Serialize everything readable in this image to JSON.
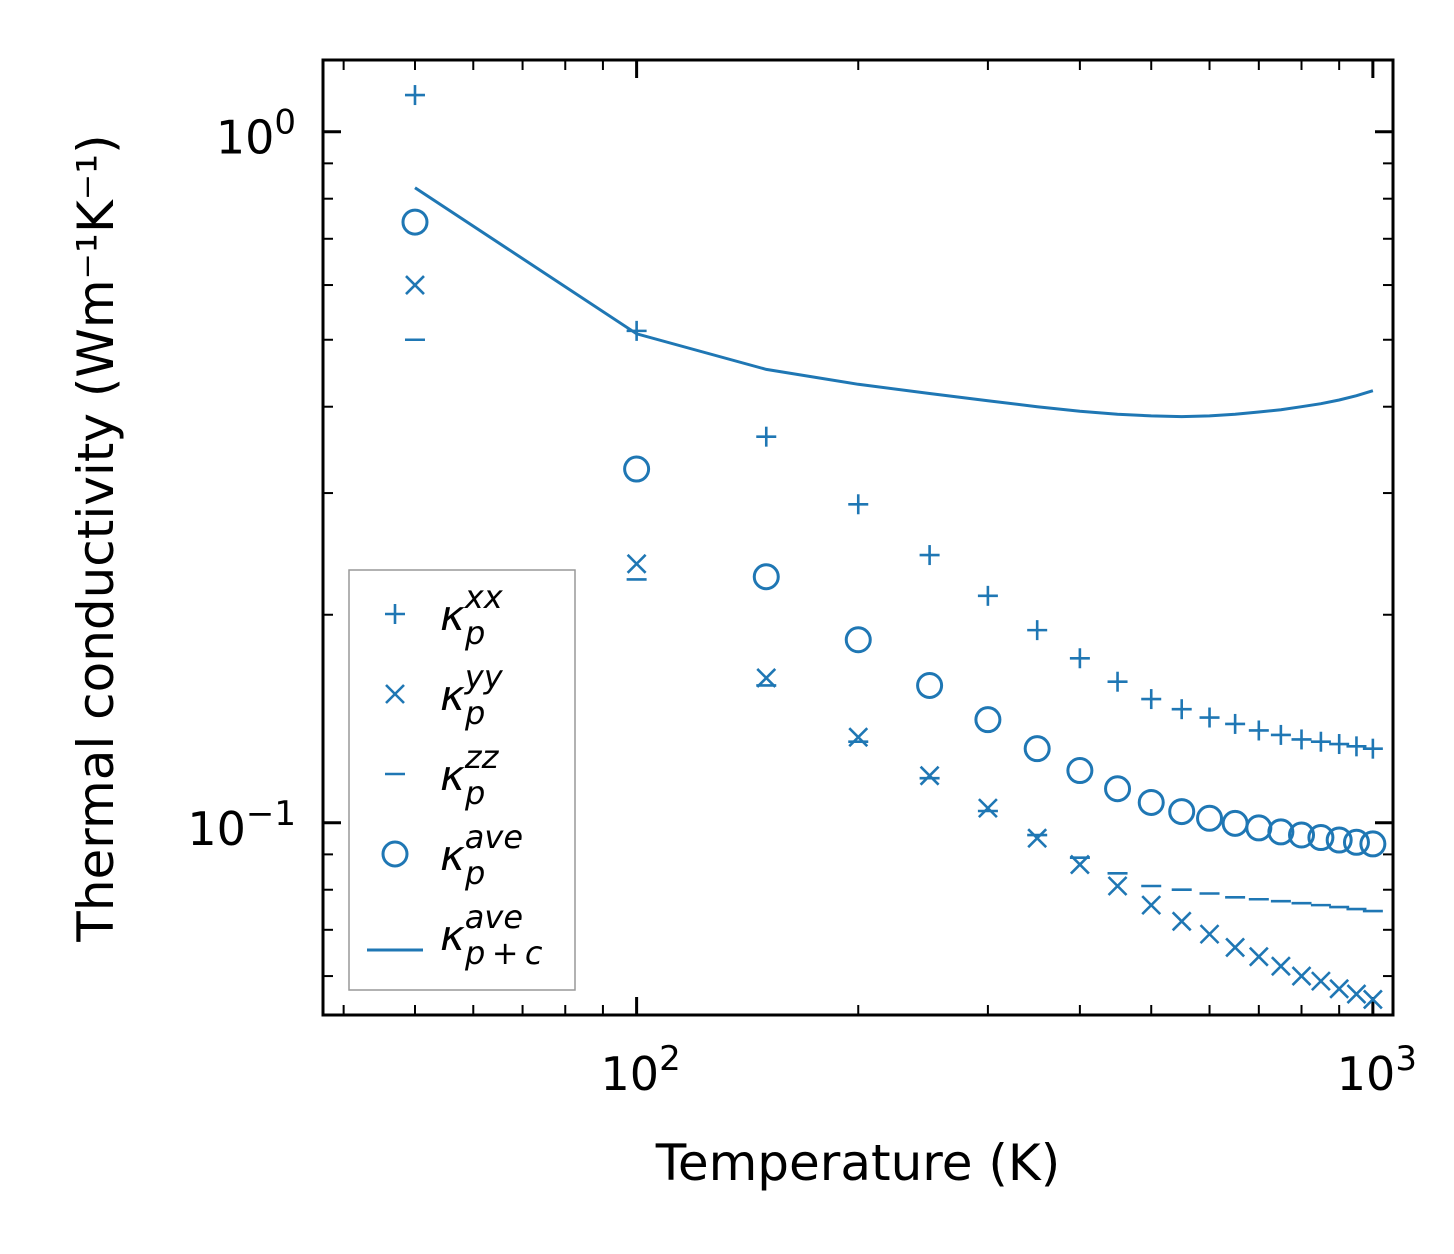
{
  "chart_data": {
    "type": "scatter",
    "xscale": "log",
    "yscale": "log",
    "xlabel": "Temperature (K)",
    "ylabel": "Thermal conductivity (Wm⁻¹K⁻¹)",
    "xlim": [
      37.5,
      1065
    ],
    "ylim": [
      0.0527,
      1.27
    ],
    "x_ticks": [
      {
        "value": 100,
        "base": "10",
        "exp": "2"
      },
      {
        "value": 1000,
        "base": "10",
        "exp": "3"
      }
    ],
    "y_ticks": [
      {
        "value": 1,
        "base": "10",
        "exp": "0"
      },
      {
        "value": 0.1,
        "base": "10",
        "exp": "−1"
      }
    ],
    "color": "#1f77b4",
    "x": [
      50,
      100,
      150,
      200,
      250,
      300,
      350,
      400,
      450,
      500,
      550,
      600,
      650,
      700,
      750,
      800,
      850,
      900,
      950,
      1000
    ],
    "series": [
      {
        "name": "kappa_p_xx",
        "legend_main": "κ",
        "legend_sub": "p",
        "legend_sup": "xx",
        "marker": "plus",
        "values": [
          1.13,
          0.515,
          0.362,
          0.289,
          0.244,
          0.213,
          0.19,
          0.173,
          0.16,
          0.151,
          0.146,
          0.142,
          0.139,
          0.136,
          0.134,
          0.132,
          0.131,
          0.13,
          0.129,
          0.128
        ]
      },
      {
        "name": "kappa_p_yy",
        "legend_main": "κ",
        "legend_sub": "p",
        "legend_sup": "yy",
        "marker": "x",
        "values": [
          0.6,
          0.237,
          0.162,
          0.133,
          0.117,
          0.105,
          0.095,
          0.087,
          0.081,
          0.076,
          0.072,
          0.069,
          0.066,
          0.064,
          0.062,
          0.06,
          0.059,
          0.0575,
          0.0565,
          0.0555
        ]
      },
      {
        "name": "kappa_p_zz",
        "legend_main": "κ",
        "legend_sub": "p",
        "legend_sup": "zz",
        "marker": "hline",
        "values": [
          0.5,
          0.225,
          0.158,
          0.131,
          0.116,
          0.104,
          0.096,
          0.089,
          0.0845,
          0.081,
          0.08,
          0.079,
          0.078,
          0.0775,
          0.077,
          0.0765,
          0.076,
          0.0755,
          0.075,
          0.0745
        ]
      },
      {
        "name": "kappa_p_ave",
        "legend_main": "κ",
        "legend_sub": "p",
        "legend_sup": "ave",
        "marker": "circle",
        "values": [
          0.74,
          0.325,
          0.227,
          0.184,
          0.158,
          0.141,
          0.128,
          0.119,
          0.112,
          0.107,
          0.1038,
          0.1015,
          0.0998,
          0.0983,
          0.097,
          0.096,
          0.0952,
          0.0944,
          0.0937,
          0.0932
        ]
      },
      {
        "name": "kappa_p_plus_c_ave",
        "legend_main": "κ",
        "legend_sub": "p + c",
        "legend_sup": "ave",
        "marker": "line",
        "values": [
          0.83,
          0.51,
          0.453,
          0.431,
          0.418,
          0.408,
          0.4,
          0.394,
          0.39,
          0.388,
          0.387,
          0.388,
          0.39,
          0.393,
          0.396,
          0.4,
          0.404,
          0.409,
          0.415,
          0.422
        ]
      }
    ],
    "legend_position": "lower-left"
  }
}
